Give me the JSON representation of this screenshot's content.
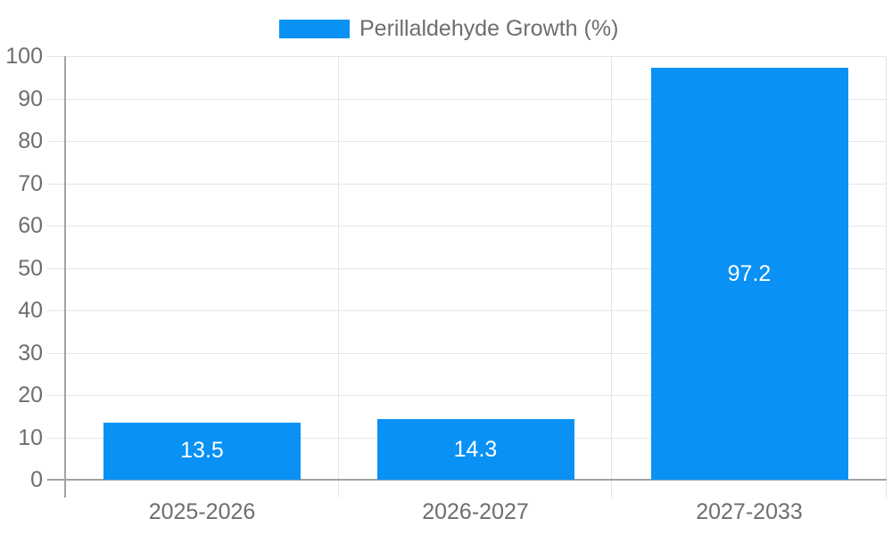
{
  "chart_data": {
    "type": "bar",
    "title": "",
    "legend": [
      "Perillaldehyde Growth (%)"
    ],
    "legend_position": "top",
    "categories": [
      "2025-2026",
      "2026-2027",
      "2027-2033"
    ],
    "series": [
      {
        "name": "Perillaldehyde Growth (%)",
        "values": [
          13.5,
          14.3,
          97.2
        ],
        "value_labels": [
          "13.5",
          "14.3",
          "97.2"
        ]
      }
    ],
    "xlabel": "",
    "ylabel": "",
    "ylim": [
      0,
      100
    ],
    "y_ticks": [
      0,
      10,
      20,
      30,
      40,
      50,
      60,
      70,
      80,
      90,
      100
    ],
    "grid": true,
    "colors": {
      "bar": "#0991f5",
      "axis": "#a3a3a3",
      "gridline": "#e5e5e5",
      "text": "#6e6e6e",
      "bar_label": "#ffffff",
      "background": "#ffffff"
    }
  }
}
